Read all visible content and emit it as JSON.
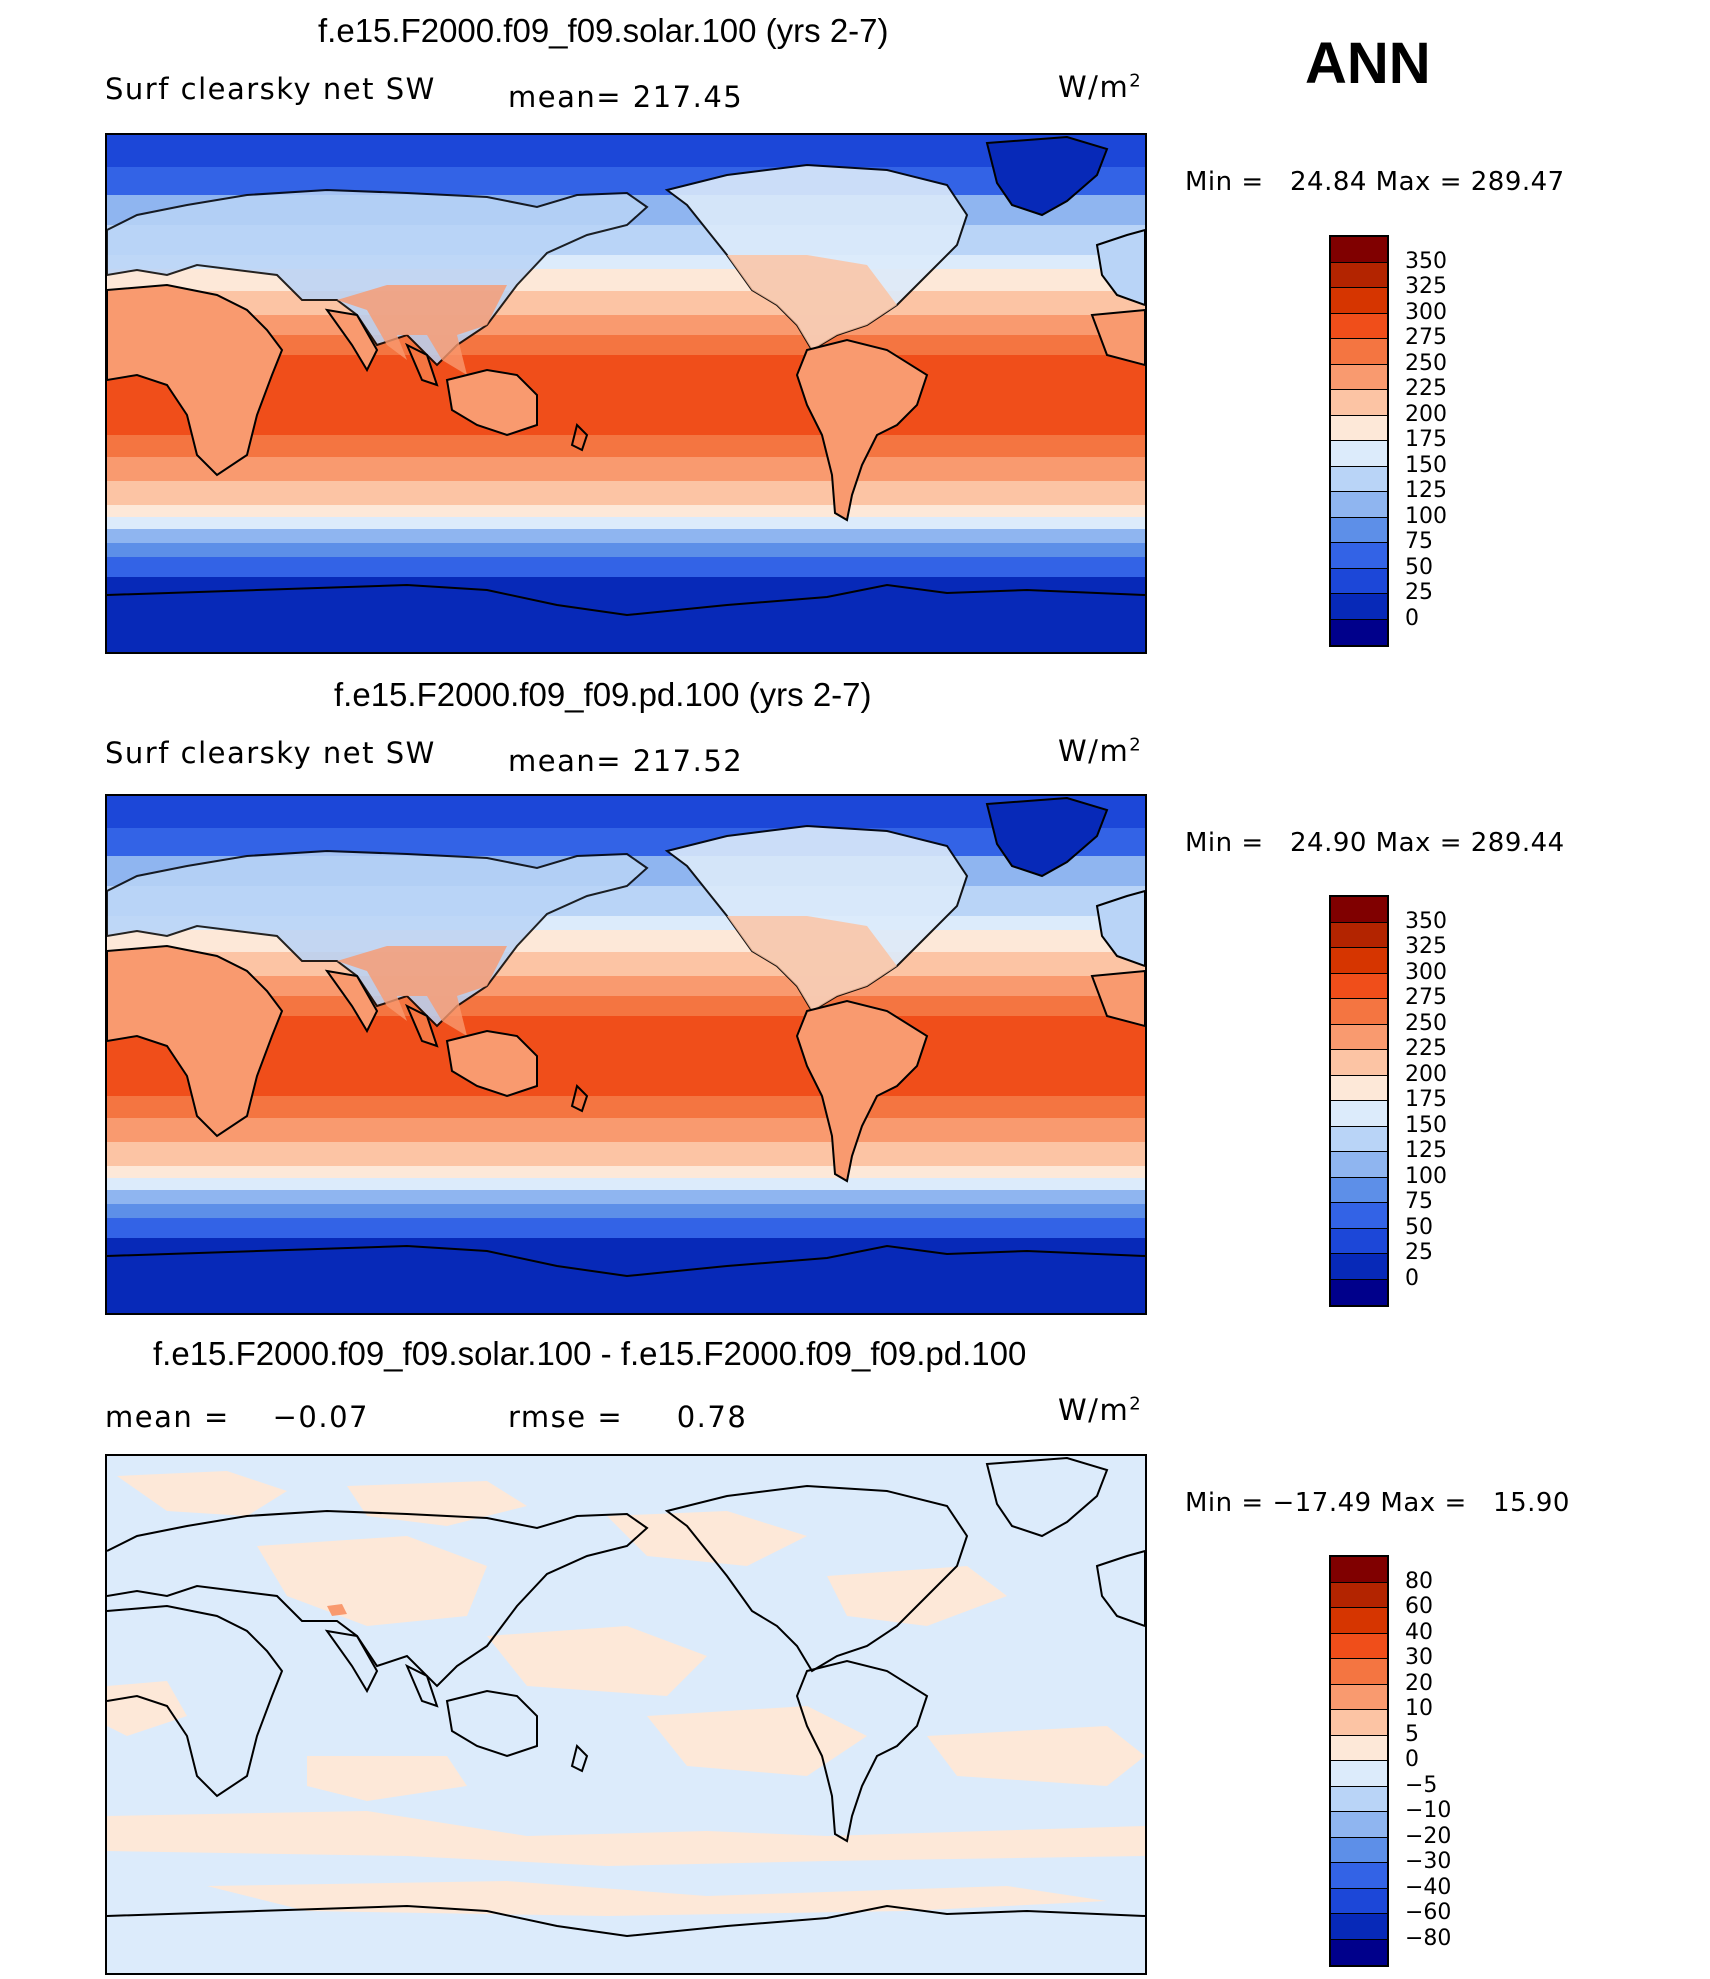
{
  "season": "ANN",
  "panels": [
    {
      "title": "f.e15.F2000.f09_f09.solar.100 (yrs 2-7)",
      "left": "Surf clearsky net SW",
      "middle": "mean= 217.45",
      "units": "W/m",
      "units_sup": "2",
      "minmax": "Min =   24.84 Max = 289.47",
      "levels": [
        "350",
        "325",
        "300",
        "275",
        "250",
        "225",
        "200",
        "175",
        "150",
        "125",
        "100",
        "75",
        "50",
        "25",
        "0"
      ],
      "colors": [
        "#800000",
        "#b32400",
        "#d63500",
        "#f04e1a",
        "#f47541",
        "#f99a6f",
        "#fcc4a4",
        "#fde8d8",
        "#dcebfb",
        "#b9d4f7",
        "#8fb5f0",
        "#5d8fe8",
        "#3363e6",
        "#1c47d8",
        "#0729b8",
        "#00008b"
      ]
    },
    {
      "title": "f.e15.F2000.f09_f09.pd.100 (yrs 2-7)",
      "left": "Surf clearsky net SW",
      "middle": "mean= 217.52",
      "units": "W/m",
      "units_sup": "2",
      "minmax": "Min =   24.90 Max = 289.44",
      "levels": [
        "350",
        "325",
        "300",
        "275",
        "250",
        "225",
        "200",
        "175",
        "150",
        "125",
        "100",
        "75",
        "50",
        "25",
        "0"
      ],
      "colors": [
        "#800000",
        "#b32400",
        "#d63500",
        "#f04e1a",
        "#f47541",
        "#f99a6f",
        "#fcc4a4",
        "#fde8d8",
        "#dcebfb",
        "#b9d4f7",
        "#8fb5f0",
        "#5d8fe8",
        "#3363e6",
        "#1c47d8",
        "#0729b8",
        "#00008b"
      ]
    },
    {
      "title": "f.e15.F2000.f09_f09.solar.100 - f.e15.F2000.f09_f09.pd.100",
      "left": "mean =    −0.07",
      "middle": "rmse =     0.78",
      "units": "W/m",
      "units_sup": "2",
      "minmax": "Min = −17.49 Max =   15.90",
      "levels": [
        "80",
        "60",
        "40",
        "30",
        "20",
        "10",
        "5",
        "0",
        "−5",
        "−10",
        "−20",
        "−30",
        "−40",
        "−60",
        "−80"
      ],
      "colors": [
        "#800000",
        "#b32400",
        "#d63500",
        "#f04e1a",
        "#f47541",
        "#f99a6f",
        "#fcc4a4",
        "#fde8d8",
        "#dcebfb",
        "#b9d4f7",
        "#8fb5f0",
        "#5d8fe8",
        "#3363e6",
        "#1c47d8",
        "#0729b8",
        "#00008b"
      ]
    }
  ]
}
